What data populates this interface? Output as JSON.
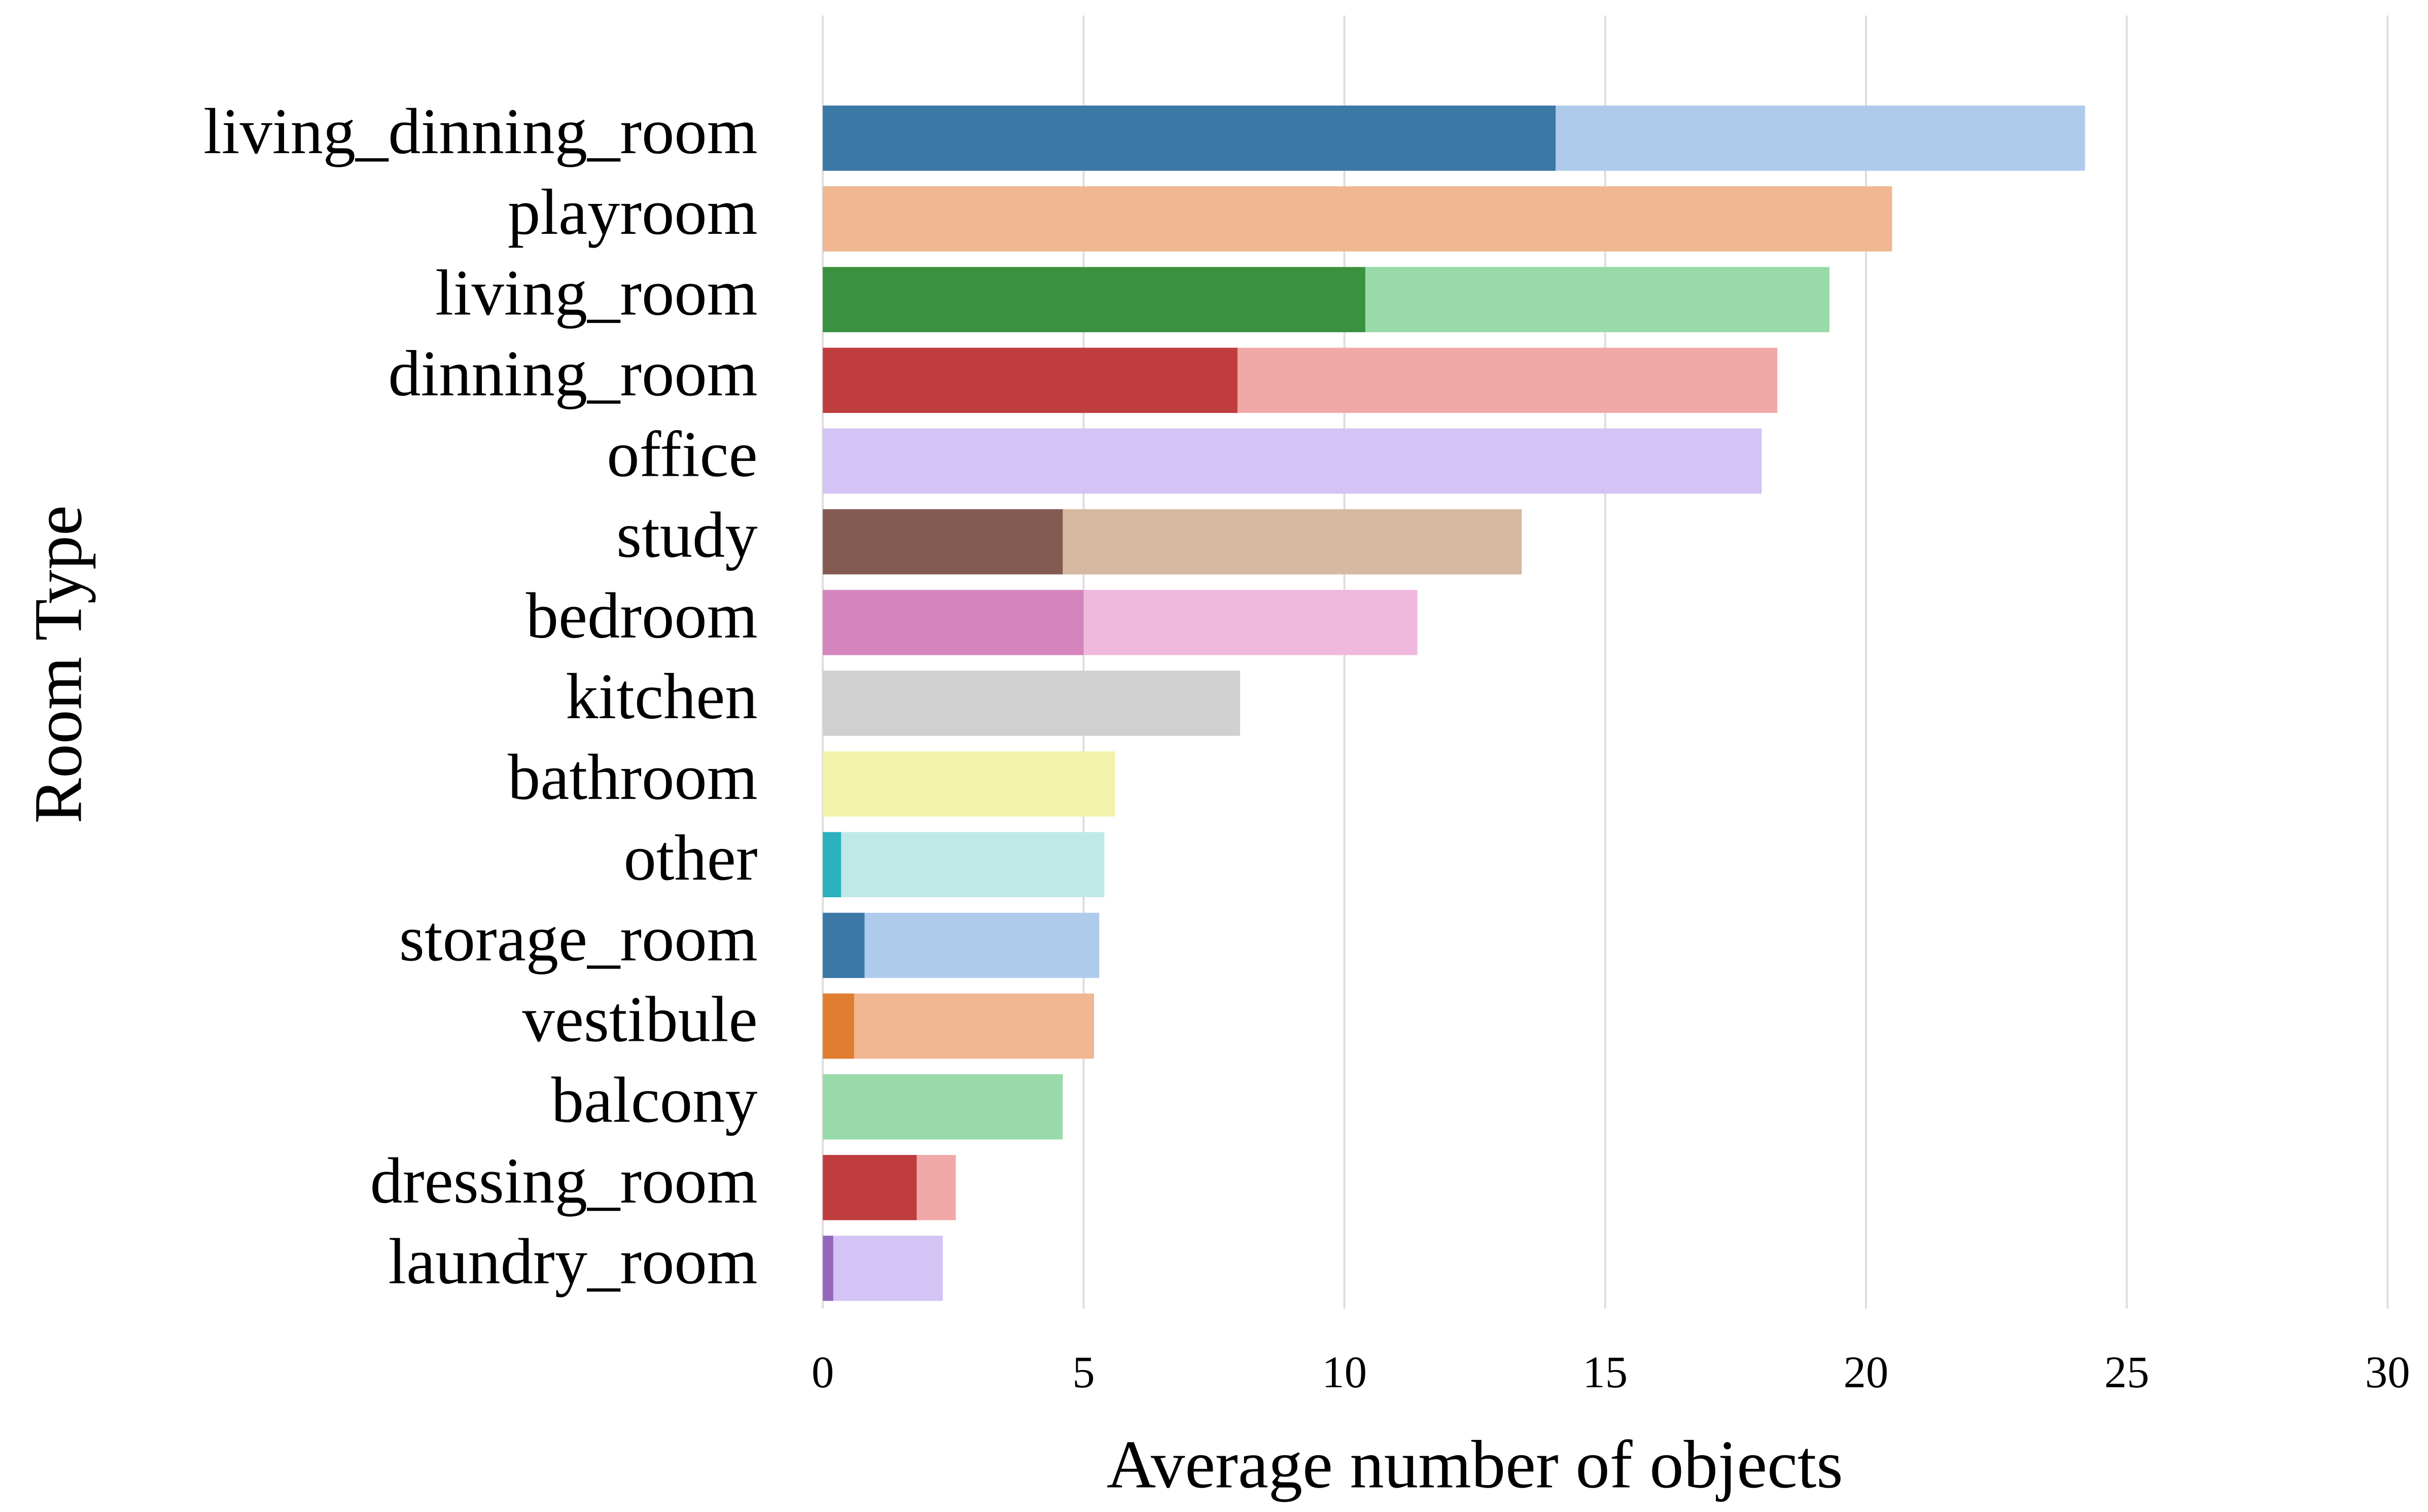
{
  "chart_data": {
    "type": "bar",
    "orientation": "horizontal",
    "xlabel": "Average number of objects",
    "ylabel": "Room Type",
    "categories": [
      "living_dinning_room",
      "playroom",
      "living_room",
      "dinning_room",
      "office",
      "study",
      "bedroom",
      "kitchen",
      "bathroom",
      "other",
      "storage_room",
      "vestibule",
      "balcony",
      "dressing_room",
      "laundry_room"
    ],
    "series": [
      {
        "values": [
          24.2,
          20.5,
          19.3,
          18.3,
          18.0,
          13.4,
          11.4,
          8.0,
          5.6,
          5.4,
          5.3,
          5.2,
          4.6,
          2.55,
          2.3
        ],
        "colors": [
          "#aecbec",
          "#f0b792",
          "#98daa8",
          "#f1a9a7",
          "#d4c3f5",
          "#d5b9a0",
          "#f0b8dc",
          "#d0d0d0",
          "#f2f2aa",
          "#bfe9e7",
          "#aecbec",
          "#f0b792",
          "#98daa8",
          "#f1a9a7",
          "#d4c3f5"
        ]
      },
      {
        "values": [
          14.05,
          null,
          10.4,
          7.95,
          null,
          4.6,
          5.0,
          null,
          null,
          0.35,
          0.8,
          0.6,
          null,
          1.8,
          0.2
        ],
        "colors": [
          "#3b78a6",
          "#e07d30",
          "#3a913f",
          "#bf3d3e",
          "#9467bd",
          "#845b53",
          "#d585bd",
          "#7f7f7f",
          "#bcbd22",
          "#2ab0be",
          "#3b78a6",
          "#e07d30",
          "#3a913f",
          "#bf3d3e",
          "#9467bd"
        ]
      }
    ],
    "xlim": [
      0,
      30
    ],
    "xticks": [
      0,
      5,
      10,
      15,
      20,
      25,
      30
    ],
    "grid": true
  }
}
